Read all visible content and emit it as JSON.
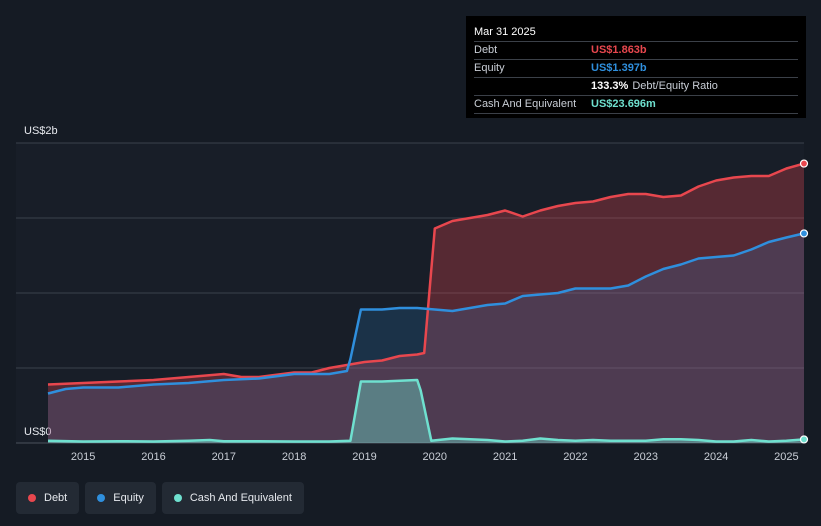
{
  "tooltip": {
    "date": "Mar 31 2025",
    "debt_label": "Debt",
    "debt_value": "US$1.863b",
    "equity_label": "Equity",
    "equity_value": "US$1.397b",
    "ratio_value": "133.3%",
    "ratio_label": "Debt/Equity Ratio",
    "cash_label": "Cash And Equivalent",
    "cash_value": "US$23.696m"
  },
  "legend": {
    "debt": "Debt",
    "equity": "Equity",
    "cash": "Cash And Equivalent"
  },
  "colors": {
    "debt": "#e8474e",
    "equity": "#2f8fdd",
    "cash": "#6fe0cf",
    "background": "#151b24"
  },
  "chart_data": {
    "type": "area",
    "ylabel_top": "US$2b",
    "ylabel_bottom": "US$0",
    "ylim": [
      0,
      2.0
    ],
    "xlim": [
      2014.5,
      2025.25
    ],
    "x_ticks": [
      "2015",
      "2016",
      "2017",
      "2018",
      "2019",
      "2020",
      "2021",
      "2022",
      "2023",
      "2024",
      "2025"
    ],
    "grid": true,
    "legend_position": "bottom-left",
    "series": [
      {
        "name": "Debt",
        "x": [
          2014.5,
          2015.0,
          2015.5,
          2016.0,
          2016.5,
          2017.0,
          2017.25,
          2017.5,
          2018.0,
          2018.25,
          2018.5,
          2019.0,
          2019.25,
          2019.5,
          2019.75,
          2019.85,
          2020.0,
          2020.25,
          2020.5,
          2020.75,
          2021.0,
          2021.25,
          2021.5,
          2021.75,
          2022.0,
          2022.25,
          2022.5,
          2022.75,
          2023.0,
          2023.25,
          2023.5,
          2023.75,
          2024.0,
          2024.25,
          2024.5,
          2024.75,
          2025.0,
          2025.25
        ],
        "values": [
          0.39,
          0.4,
          0.41,
          0.42,
          0.44,
          0.46,
          0.44,
          0.44,
          0.47,
          0.47,
          0.5,
          0.54,
          0.55,
          0.58,
          0.59,
          0.6,
          1.43,
          1.48,
          1.5,
          1.52,
          1.55,
          1.51,
          1.55,
          1.58,
          1.6,
          1.61,
          1.64,
          1.66,
          1.66,
          1.64,
          1.65,
          1.71,
          1.75,
          1.77,
          1.78,
          1.78,
          1.83,
          1.863
        ]
      },
      {
        "name": "Equity",
        "x": [
          2014.5,
          2014.75,
          2015.0,
          2015.5,
          2016.0,
          2016.5,
          2017.0,
          2017.5,
          2018.0,
          2018.5,
          2018.75,
          2018.8,
          2018.95,
          2019.25,
          2019.5,
          2019.75,
          2020.0,
          2020.25,
          2020.5,
          2020.75,
          2021.0,
          2021.25,
          2021.5,
          2021.75,
          2022.0,
          2022.25,
          2022.5,
          2022.75,
          2023.0,
          2023.25,
          2023.5,
          2023.75,
          2024.0,
          2024.25,
          2024.5,
          2024.75,
          2025.0,
          2025.25
        ],
        "values": [
          0.33,
          0.36,
          0.37,
          0.37,
          0.39,
          0.4,
          0.42,
          0.43,
          0.46,
          0.46,
          0.48,
          0.56,
          0.89,
          0.89,
          0.9,
          0.9,
          0.89,
          0.88,
          0.9,
          0.92,
          0.93,
          0.98,
          0.99,
          1.0,
          1.03,
          1.03,
          1.03,
          1.05,
          1.11,
          1.16,
          1.19,
          1.23,
          1.24,
          1.25,
          1.29,
          1.34,
          1.37,
          1.397
        ]
      },
      {
        "name": "Cash And Equivalent",
        "x": [
          2014.5,
          2015.0,
          2015.5,
          2016.0,
          2016.5,
          2016.8,
          2017.0,
          2017.5,
          2018.0,
          2018.5,
          2018.8,
          2018.95,
          2019.25,
          2019.5,
          2019.75,
          2019.8,
          2019.95,
          2020.25,
          2020.5,
          2020.75,
          2021.0,
          2021.25,
          2021.5,
          2021.75,
          2022.0,
          2022.25,
          2022.5,
          2022.75,
          2023.0,
          2023.25,
          2023.5,
          2023.75,
          2024.0,
          2024.25,
          2024.5,
          2024.75,
          2025.0,
          2025.25
        ],
        "values": [
          0.015,
          0.01,
          0.012,
          0.01,
          0.015,
          0.02,
          0.012,
          0.012,
          0.01,
          0.01,
          0.015,
          0.41,
          0.41,
          0.415,
          0.42,
          0.35,
          0.015,
          0.03,
          0.025,
          0.02,
          0.01,
          0.015,
          0.03,
          0.02,
          0.015,
          0.02,
          0.015,
          0.015,
          0.015,
          0.025,
          0.025,
          0.02,
          0.01,
          0.01,
          0.02,
          0.01,
          0.015,
          0.0237
        ]
      }
    ]
  }
}
